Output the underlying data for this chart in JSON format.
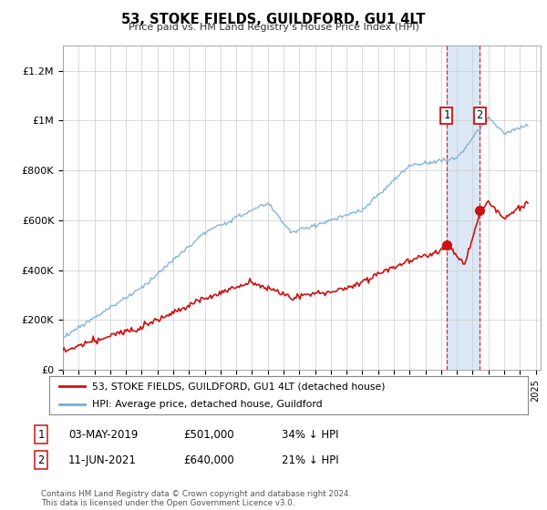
{
  "title": "53, STOKE FIELDS, GUILDFORD, GU1 4LT",
  "subtitle": "Price paid vs. HM Land Registry's House Price Index (HPI)",
  "xlim_start": 1995.0,
  "xlim_end": 2025.3,
  "ylim": [
    0,
    1300000
  ],
  "hpi_color": "#7aadd4",
  "sale_color": "#cc1111",
  "marker1_date": 2019.35,
  "marker1_price": 501000,
  "marker2_date": 2021.44,
  "marker2_price": 640000,
  "legend1": "53, STOKE FIELDS, GUILDFORD, GU1 4LT (detached house)",
  "legend2": "HPI: Average price, detached house, Guildford",
  "table_row1": [
    "1",
    "03-MAY-2019",
    "£501,000",
    "34% ↓ HPI"
  ],
  "table_row2": [
    "2",
    "11-JUN-2021",
    "£640,000",
    "21% ↓ HPI"
  ],
  "footer": "Contains HM Land Registry data © Crown copyright and database right 2024.\nThis data is licensed under the Open Government Licence v3.0.",
  "shade_color": "#dce8f5",
  "yticks": [
    0,
    200000,
    400000,
    600000,
    800000,
    1000000,
    1200000
  ],
  "ylabels": [
    "£0",
    "£200K",
    "£400K",
    "£600K",
    "£800K",
    "£1M",
    "£1.2M"
  ]
}
